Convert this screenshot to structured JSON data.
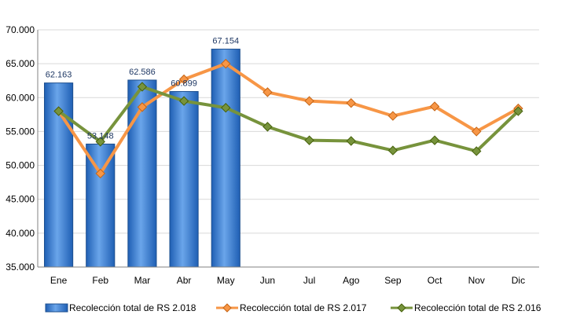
{
  "chart_data": {
    "type": "bar",
    "categories": [
      "Ene",
      "Feb",
      "Mar",
      "Abr",
      "May",
      "Jun",
      "Jul",
      "Ago",
      "Sep",
      "Oct",
      "Nov",
      "Dic"
    ],
    "ylim": [
      35000,
      70000
    ],
    "yticks": [
      35000,
      40000,
      45000,
      50000,
      55000,
      60000,
      65000,
      70000
    ],
    "ytick_labels": [
      "35.000",
      "40.000",
      "45.000",
      "50.000",
      "55.000",
      "60.000",
      "65.000",
      "70.000"
    ],
    "grid": "y-major",
    "legend_position": "bottom",
    "series": [
      {
        "name": "Recolección total de RS 2.018",
        "type": "bar",
        "color": "#2e75d6",
        "values": [
          62163,
          53148,
          62586,
          60899,
          67154,
          null,
          null,
          null,
          null,
          null,
          null,
          null
        ],
        "labels": [
          "62.163",
          "53.148",
          "62.586",
          "60.899",
          "67.154"
        ]
      },
      {
        "name": "Recolección total de RS 2.017",
        "type": "line",
        "color": "#f79646",
        "values": [
          58000,
          48800,
          58600,
          62700,
          65000,
          60800,
          59500,
          59200,
          57300,
          58700,
          55000,
          58400
        ]
      },
      {
        "name": "Recolección total de RS 2.016",
        "type": "line",
        "color": "#77933c",
        "values": [
          58000,
          53500,
          61600,
          59500,
          58500,
          55700,
          53700,
          53600,
          52200,
          53700,
          52100,
          58000
        ]
      }
    ]
  }
}
